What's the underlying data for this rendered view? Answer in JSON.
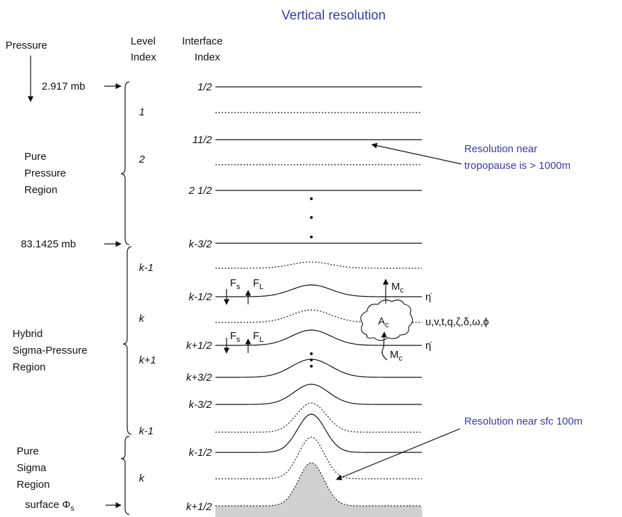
{
  "title": "Vertical resolution",
  "headers": {
    "pressure": "Pressure",
    "level_index": [
      "Level",
      "Index"
    ],
    "interface_index": [
      "Interface",
      "Index"
    ]
  },
  "pressure_markers": [
    "2.917 mb",
    "83.1425 mb"
  ],
  "surface": {
    "text": "surface Φ",
    "sub": "s"
  },
  "regions": [
    [
      "Pure",
      "Pressure",
      "Region"
    ],
    [
      "Hybrid",
      "Sigma-Pressure",
      "Region"
    ],
    [
      "Pure",
      "Sigma",
      "Region"
    ]
  ],
  "level_indices": [
    "1",
    "2",
    "k-1",
    "k",
    "k+1",
    "k-1",
    "k"
  ],
  "interface_indices": [
    "1/2",
    "11/2",
    "2 1/2",
    "k-3/2",
    "k-1/2",
    "k+1/2",
    "k+3/2",
    "k-3/2",
    "k-1/2",
    "k+1/2"
  ],
  "annotations": [
    [
      "Resolution near",
      "tropopause is > 1000m"
    ],
    [
      "Resolution near sfc 100m"
    ]
  ],
  "symbols": {
    "fs": {
      "base": "F",
      "sub": "s"
    },
    "fl": {
      "base": "F",
      "sub": "L"
    },
    "mc": {
      "base": "M",
      "sub": "c"
    },
    "ac": {
      "base": "A",
      "sub": "c"
    },
    "eta_dot": "η̇",
    "variables": "u,v,t,q,ζ,δ,ω,ϕ"
  }
}
